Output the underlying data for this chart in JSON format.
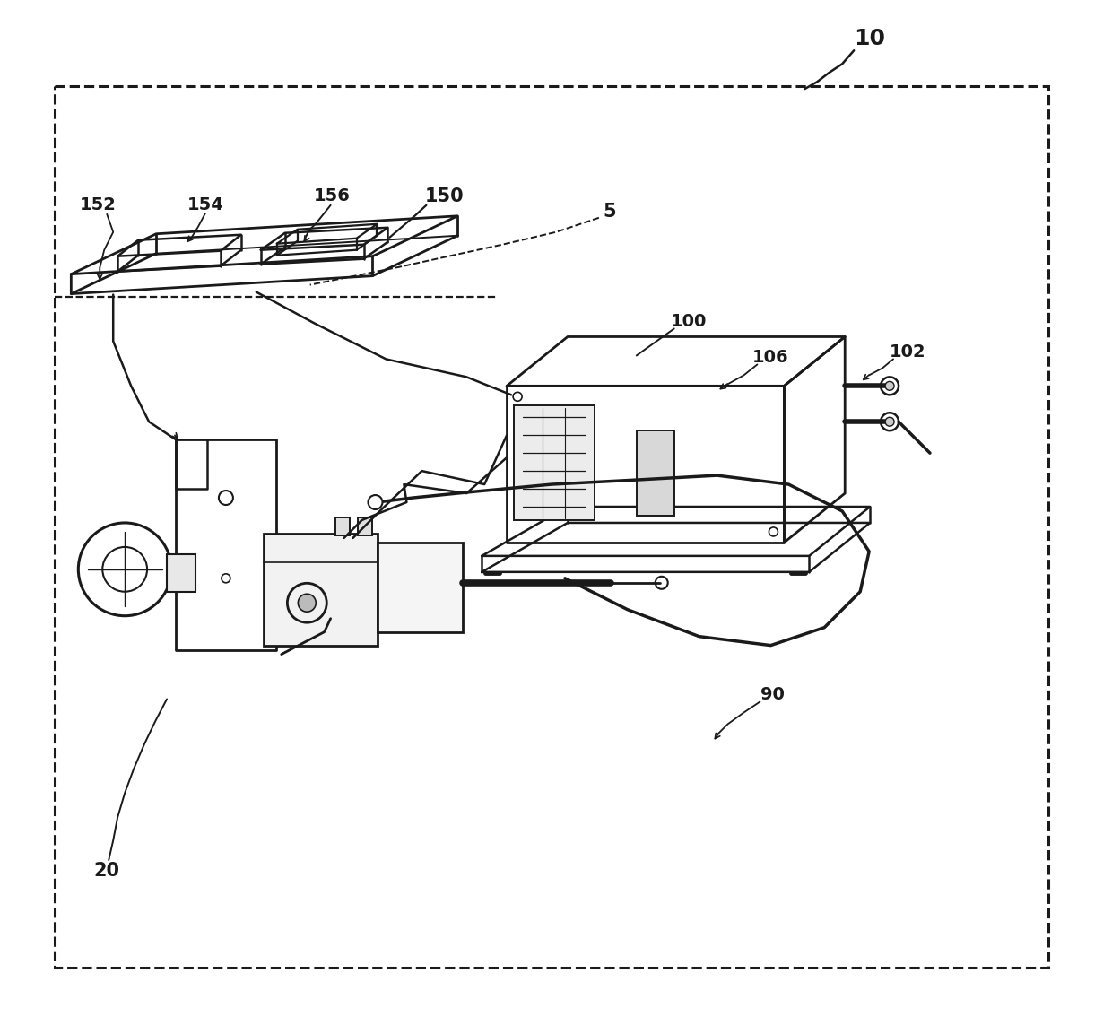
{
  "bg_color": "#ffffff",
  "line_color": "#1a1a1a",
  "fig_width": 12.4,
  "fig_height": 11.34,
  "dpi": 100
}
